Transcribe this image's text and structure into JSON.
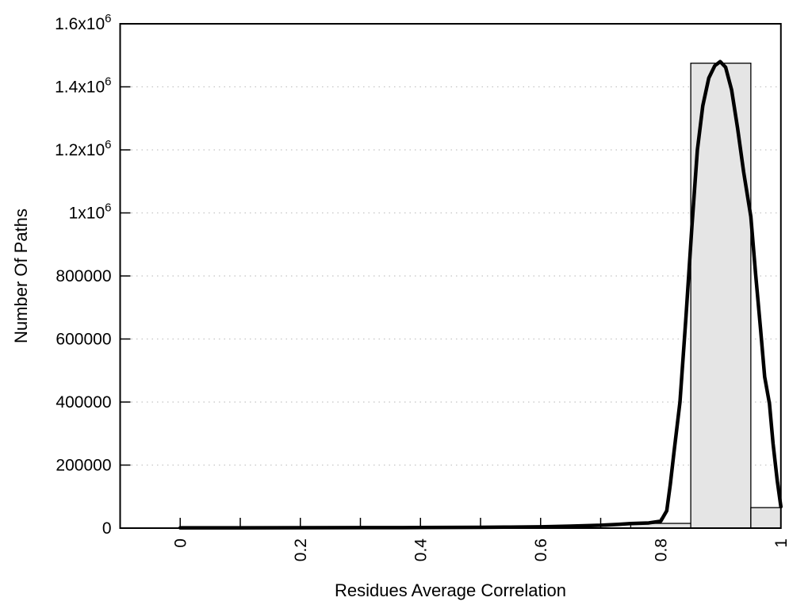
{
  "chart_data": {
    "type": "bar",
    "subtype": "histogram_with_density_curve",
    "title": "",
    "xlabel": "Residues Average Correlation",
    "ylabel": "Number Of Paths",
    "xlim": [
      -0.1,
      1.0
    ],
    "ylim": [
      0,
      1600000
    ],
    "grid": "horizontal-dotted",
    "legend_position": "none",
    "x_ticks": [
      {
        "v": 0.0,
        "label": "0"
      },
      {
        "v": 0.1,
        "label": ""
      },
      {
        "v": 0.2,
        "label": "0.2"
      },
      {
        "v": 0.3,
        "label": ""
      },
      {
        "v": 0.4,
        "label": "0.4"
      },
      {
        "v": 0.5,
        "label": ""
      },
      {
        "v": 0.6,
        "label": "0.6"
      },
      {
        "v": 0.7,
        "label": ""
      },
      {
        "v": 0.8,
        "label": "0.8"
      },
      {
        "v": 0.9,
        "label": ""
      },
      {
        "v": 1.0,
        "label": "1"
      }
    ],
    "y_ticks": [
      {
        "v": 0,
        "m": "0",
        "e": ""
      },
      {
        "v": 200000,
        "m": "200000",
        "e": ""
      },
      {
        "v": 400000,
        "m": "400000",
        "e": ""
      },
      {
        "v": 600000,
        "m": "600000",
        "e": ""
      },
      {
        "v": 800000,
        "m": "800000",
        "e": ""
      },
      {
        "v": 1000000,
        "m": "1x10",
        "e": "6"
      },
      {
        "v": 1200000,
        "m": "1.2x10",
        "e": "6"
      },
      {
        "v": 1400000,
        "m": "1.4x10",
        "e": "6"
      },
      {
        "v": 1600000,
        "m": "1.6x10",
        "e": "6"
      }
    ],
    "bars": [
      {
        "x0": 0.75,
        "x1": 0.85,
        "value": 15000
      },
      {
        "x0": 0.85,
        "x1": 0.95,
        "value": 1475000
      },
      {
        "x0": 0.95,
        "x1": 1.0,
        "value": 65000
      }
    ],
    "curve_points": [
      [
        0.0,
        1000
      ],
      [
        0.1,
        1000
      ],
      [
        0.2,
        1200
      ],
      [
        0.3,
        1500
      ],
      [
        0.4,
        1800
      ],
      [
        0.5,
        2500
      ],
      [
        0.55,
        3200
      ],
      [
        0.6,
        4200
      ],
      [
        0.65,
        6200
      ],
      [
        0.7,
        9000
      ],
      [
        0.73,
        12000
      ],
      [
        0.75,
        14500
      ],
      [
        0.78,
        16500
      ],
      [
        0.8,
        22000
      ],
      [
        0.81,
        55000
      ],
      [
        0.816,
        140000
      ],
      [
        0.822,
        240000
      ],
      [
        0.832,
        400000
      ],
      [
        0.842,
        670000
      ],
      [
        0.852,
        960000
      ],
      [
        0.861,
        1200000
      ],
      [
        0.87,
        1340000
      ],
      [
        0.88,
        1428000
      ],
      [
        0.89,
        1467000
      ],
      [
        0.899,
        1480000
      ],
      [
        0.908,
        1462000
      ],
      [
        0.918,
        1390000
      ],
      [
        0.928,
        1268000
      ],
      [
        0.938,
        1130000
      ],
      [
        0.95,
        988000
      ],
      [
        0.958,
        805000
      ],
      [
        0.966,
        635000
      ],
      [
        0.973,
        480000
      ],
      [
        0.981,
        395000
      ],
      [
        0.987,
        268000
      ],
      [
        0.994,
        150000
      ],
      [
        1.0,
        68000
      ]
    ],
    "colors": {
      "background": "#ffffff",
      "frame": "#000000",
      "bar_fill": "#e5e5e5",
      "bar_border": "#000000",
      "curve": "#000000",
      "grid": "#c4c4c4",
      "text": "#000000"
    }
  }
}
